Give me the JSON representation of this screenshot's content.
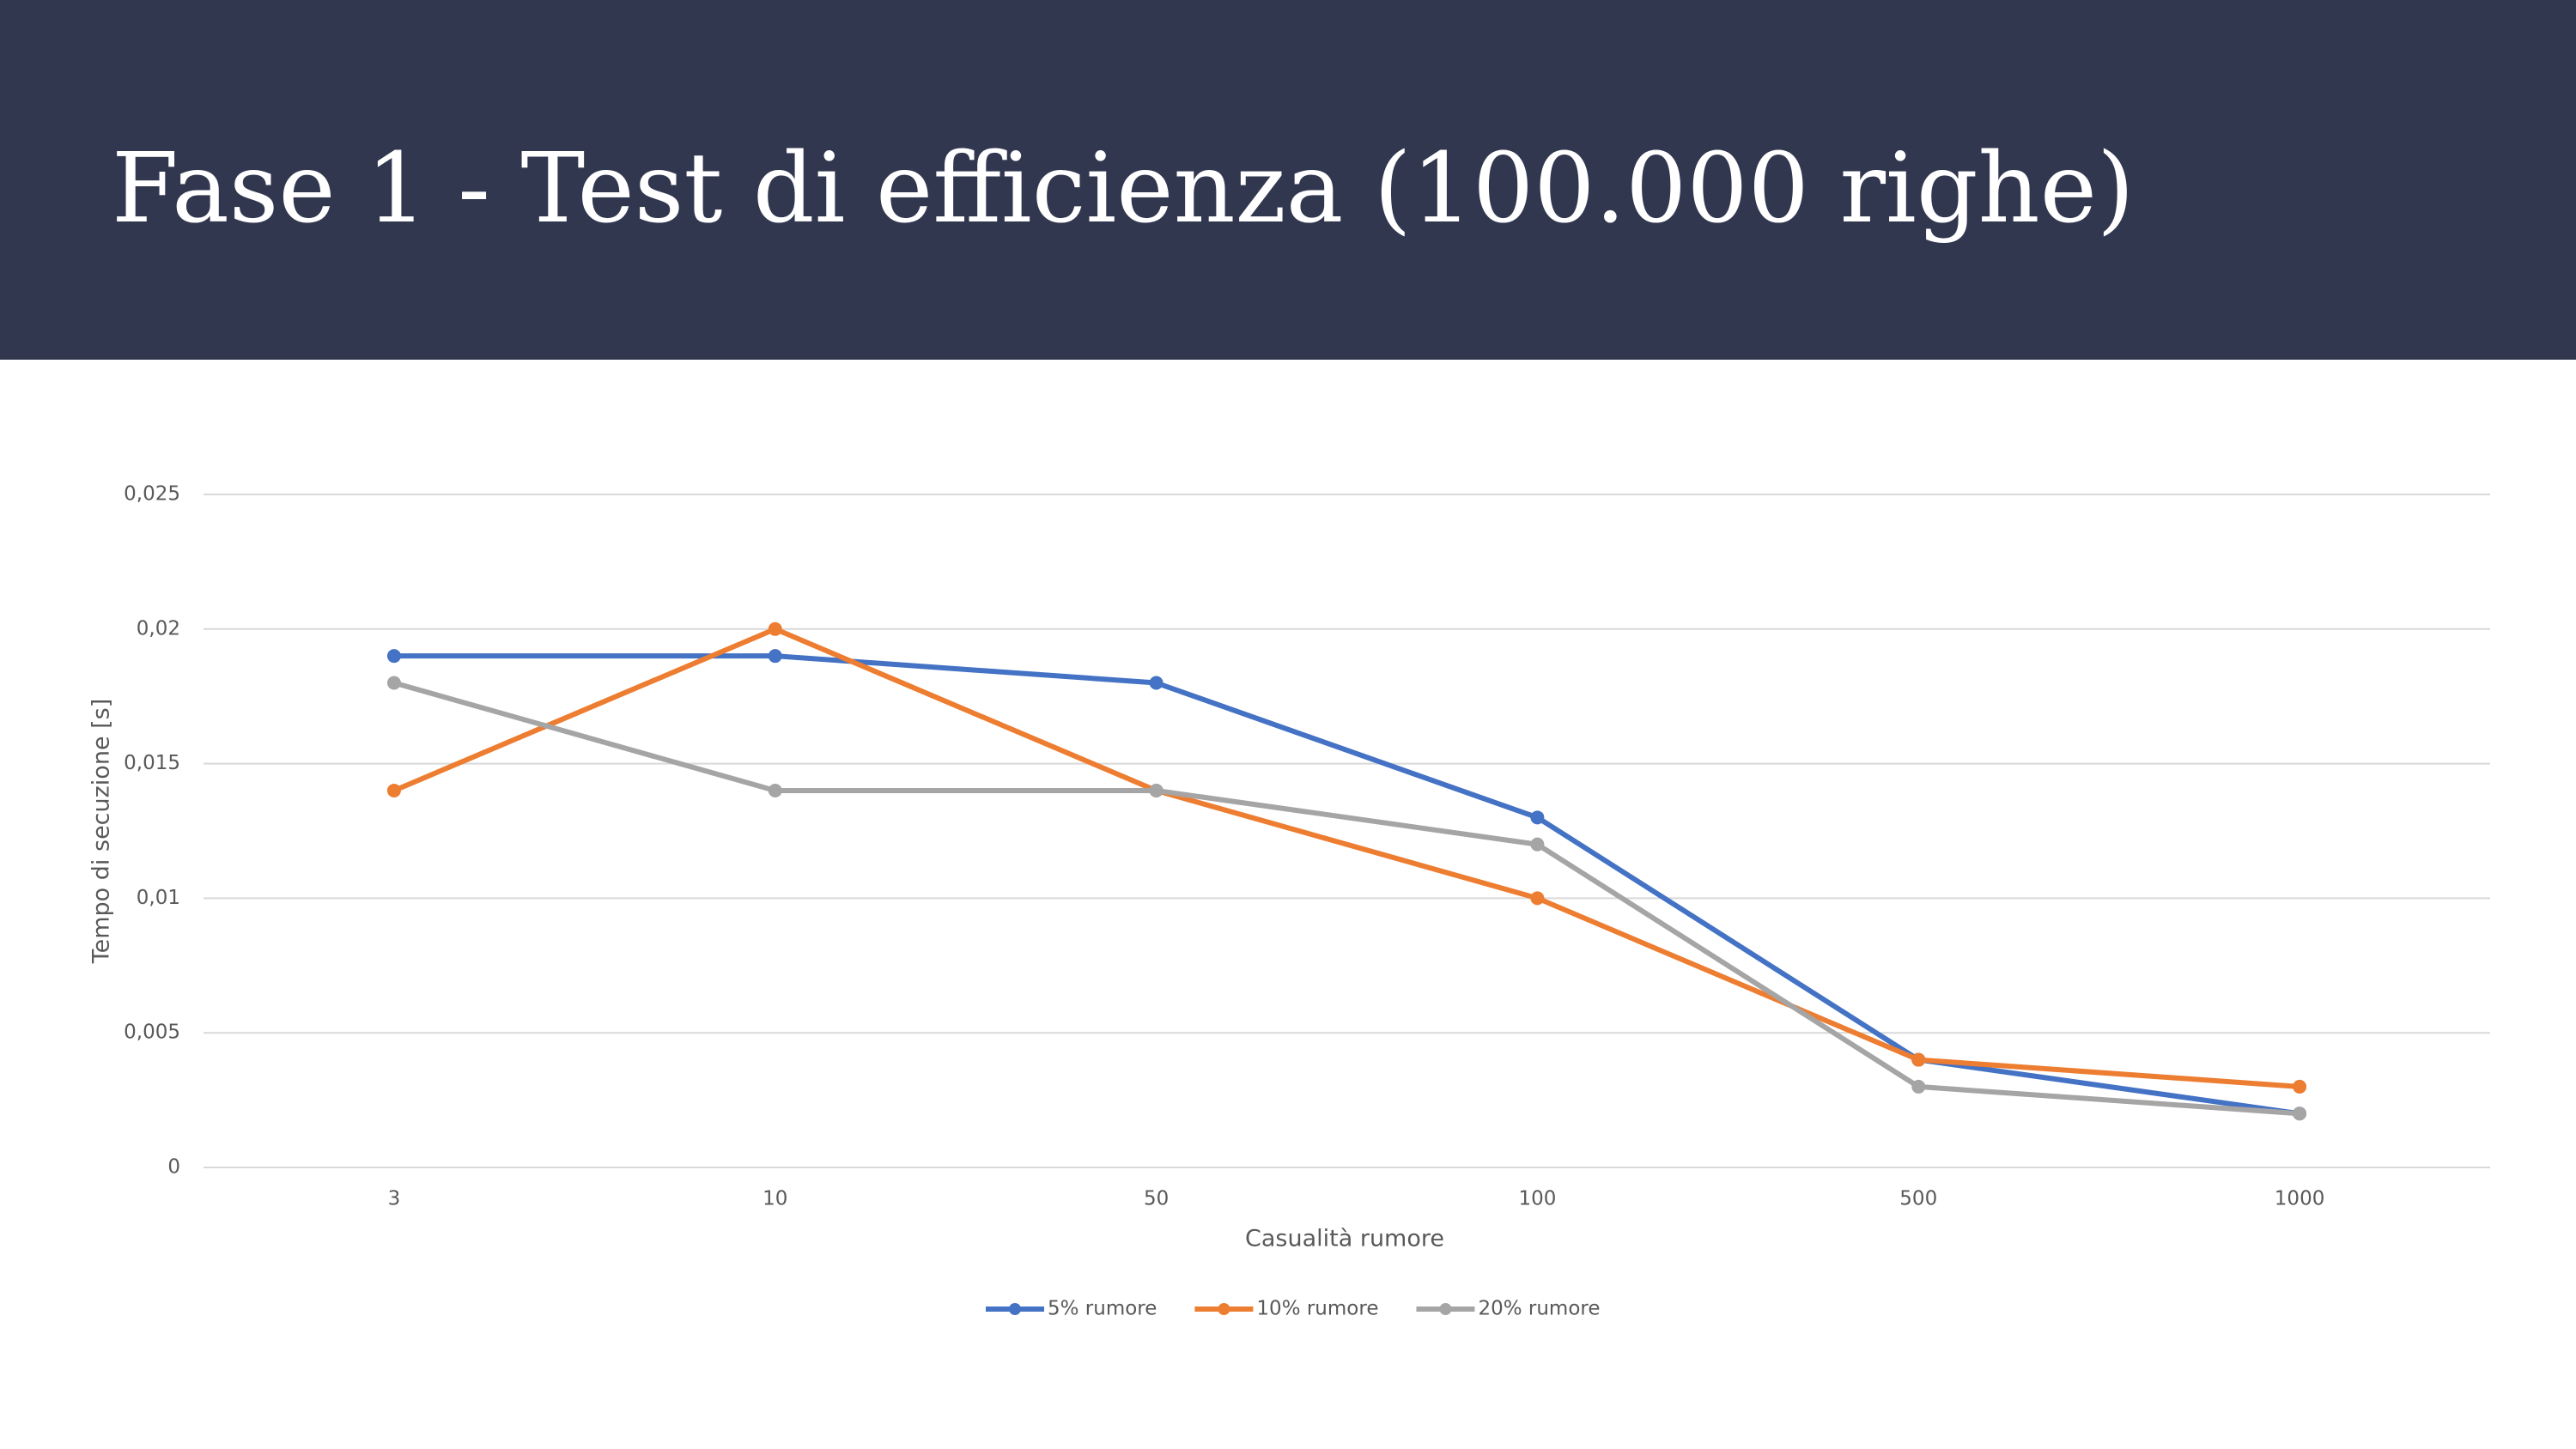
{
  "title": "Fase 1 - Test di efficienza (100.000 righe)",
  "chart_data": {
    "type": "line",
    "x_label": "Casualità rumore",
    "y_label": "Tempo di secuzione [s]",
    "categories": [
      "3",
      "10",
      "50",
      "100",
      "500",
      "1000"
    ],
    "series": [
      {
        "name": "5% rumore",
        "color": "#4472c4",
        "values": [
          0.019,
          0.019,
          0.018,
          0.013,
          0.004,
          0.002
        ]
      },
      {
        "name": "10% rumore",
        "color": "#ed7d31",
        "values": [
          0.014,
          0.02,
          0.014,
          0.01,
          0.004,
          0.003
        ]
      },
      {
        "name": "20% rumore",
        "color": "#a5a5a5",
        "values": [
          0.018,
          0.014,
          0.014,
          0.012,
          0.003,
          0.002
        ]
      }
    ],
    "ylim": [
      0,
      0.025
    ],
    "yticks": [
      0,
      {
        "value": 0.005,
        "label": "0,005"
      },
      {
        "value": 0.01,
        "label": "0,01"
      },
      {
        "value": 0.015,
        "label": "0,015"
      },
      {
        "value": 0.02,
        "label": "0,02"
      },
      {
        "value": 0.025,
        "label": "0,025"
      }
    ],
    "grid": true,
    "legend": "bottom"
  }
}
